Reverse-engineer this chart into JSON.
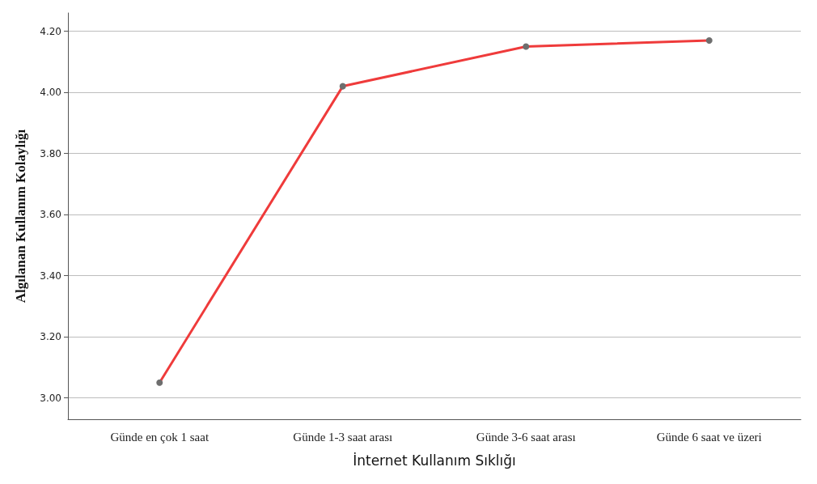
{
  "chart_data": {
    "type": "line",
    "xlabel": "İnternet Kullanım Sıklığı",
    "ylabel": "Algılanan Kullanım Kolaylığı",
    "categories": [
      "Günde en çok 1 saat",
      "Günde 1-3 saat arası",
      "Günde 3-6 saat arası",
      "Günde 6 saat ve üzeri"
    ],
    "series": [
      {
        "color": "#ef3b3b",
        "values": [
          3.05,
          4.02,
          4.15,
          4.17
        ]
      }
    ],
    "ylim": [
      2.93,
      4.26
    ],
    "yticks": [
      {
        "value": 3,
        "label": "3.00"
      },
      {
        "value": 3.2,
        "label": "3.20"
      },
      {
        "value": 3.4,
        "label": "3.40"
      },
      {
        "value": 3.6,
        "label": "3.60"
      },
      {
        "value": 3.8,
        "label": "3.80"
      },
      {
        "value": 4,
        "label": "4.00"
      },
      {
        "value": 4.2,
        "label": "4.20"
      }
    ],
    "grid": "y",
    "marker": "circle",
    "line_style": "solid"
  }
}
